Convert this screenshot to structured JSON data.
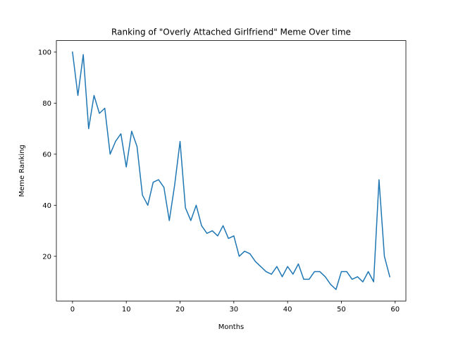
{
  "chart_data": {
    "type": "line",
    "title": "Ranking of \"Overly Attached Girlfriend\" Meme Over time",
    "xlabel": "Months",
    "ylabel": "Meme Ranking",
    "xlim": [
      -3,
      62
    ],
    "ylim": [
      2.5,
      104.5
    ],
    "xticks": [
      0,
      10,
      20,
      30,
      40,
      50,
      60
    ],
    "yticks": [
      20,
      40,
      60,
      80,
      100
    ],
    "grid": false,
    "legend": "none",
    "series": [
      {
        "color": "#1f77b4",
        "x": [
          0,
          1,
          2,
          3,
          4,
          5,
          6,
          7,
          8,
          9,
          10,
          11,
          12,
          13,
          14,
          15,
          16,
          17,
          18,
          19,
          20,
          21,
          22,
          23,
          24,
          25,
          26,
          27,
          28,
          29,
          30,
          31,
          32,
          33,
          34,
          35,
          36,
          37,
          38,
          39,
          40,
          41,
          42,
          43,
          44,
          45,
          46,
          47,
          48,
          49,
          50,
          51,
          52,
          53,
          54,
          55,
          56,
          57,
          58,
          59
        ],
        "y": [
          100,
          83,
          99,
          70,
          83,
          76,
          78,
          60,
          65,
          68,
          55,
          69,
          63,
          44,
          40,
          49,
          50,
          47,
          34,
          48,
          65,
          39,
          34,
          40,
          32,
          29,
          30,
          28,
          32,
          27,
          28,
          20,
          22,
          21,
          18,
          16,
          14,
          13,
          16,
          12,
          16,
          13,
          17,
          11,
          11,
          14,
          14,
          12,
          9,
          7,
          14,
          14,
          11,
          12,
          10,
          14,
          10,
          50,
          20,
          12
        ]
      }
    ]
  }
}
